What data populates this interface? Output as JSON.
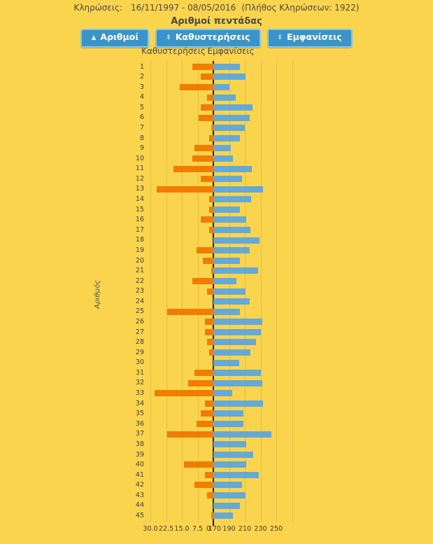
{
  "header": {
    "draws_label": "Κληρώσεις:",
    "date_range": "16/11/1997 - 08/05/2016",
    "draws_count": "(Πλήθος Κληρώσεων: 1922)"
  },
  "title": "Αριθμοί πεντάδας",
  "buttons": [
    {
      "label": "Αριθμοί",
      "glyph": "▲",
      "icon": "sort-ascending-icon"
    },
    {
      "label": "Καθυστερήσεις",
      "glyph": "⇕",
      "icon": "sort-both-icon"
    },
    {
      "label": "Εμφανίσεις",
      "glyph": "⇕",
      "icon": "sort-both-icon"
    }
  ],
  "columns": {
    "left": "Καθυστερήσεις",
    "right": "Εμφανίσεις"
  },
  "colors": {
    "background": "#FBD44E",
    "delays_bar": "#F07D00",
    "appearances_bar": "#66A9D4",
    "button": "#3A94C7",
    "button_border": "#8AC6E6",
    "axis_line": "#1e1e1e"
  },
  "chart_data": {
    "type": "bar",
    "variant": "diverging-horizontal",
    "title": "Αριθμοί πεντάδας",
    "ylabel": "Αριθμός",
    "grid": true,
    "legend": false,
    "categories": [
      "1",
      "2",
      "3",
      "4",
      "5",
      "6",
      "7",
      "8",
      "9",
      "10",
      "11",
      "12",
      "13",
      "14",
      "15",
      "16",
      "17",
      "18",
      "19",
      "20",
      "21",
      "22",
      "23",
      "24",
      "25",
      "26",
      "27",
      "28",
      "29",
      "30",
      "31",
      "32",
      "33",
      "34",
      "35",
      "36",
      "37",
      "38",
      "39",
      "40",
      "41",
      "42",
      "43",
      "44",
      "45"
    ],
    "series": [
      {
        "name": "Καθυστερήσεις",
        "side": "left",
        "color": "#F07D00",
        "axis": {
          "min": 0,
          "max": 30,
          "ticks": [
            "30.0",
            "22.5",
            "15.0",
            "7.5",
            "0"
          ],
          "tick_values": [
            30,
            22.5,
            15,
            7.5,
            0
          ]
        },
        "values": [
          10,
          6,
          16,
          3,
          6,
          7,
          1,
          2,
          9,
          10,
          19,
          6,
          27,
          2,
          2,
          6,
          2,
          0,
          8,
          5,
          1,
          10,
          3,
          0,
          22,
          4,
          4,
          3,
          2,
          0,
          9,
          12,
          28,
          4,
          6,
          8,
          22,
          0,
          0,
          14,
          4,
          9,
          3,
          0,
          1
        ]
      },
      {
        "name": "Εμφανίσεις",
        "side": "right",
        "color": "#66A9D4",
        "axis": {
          "min": 170,
          "max": 250,
          "ticks": [
            "170",
            "190",
            "210",
            "230",
            "250"
          ],
          "tick_values": [
            170,
            190,
            210,
            230,
            250
          ]
        },
        "values": [
          204,
          211,
          190,
          198,
          220,
          216,
          210,
          204,
          192,
          195,
          219,
          206,
          233,
          218,
          204,
          212,
          217,
          229,
          216,
          204,
          227,
          199,
          211,
          216,
          204,
          232,
          230,
          224,
          217,
          203,
          230,
          232,
          194,
          233,
          208,
          208,
          244,
          212,
          221,
          212,
          228,
          206,
          211,
          204,
          195
        ]
      }
    ]
  }
}
